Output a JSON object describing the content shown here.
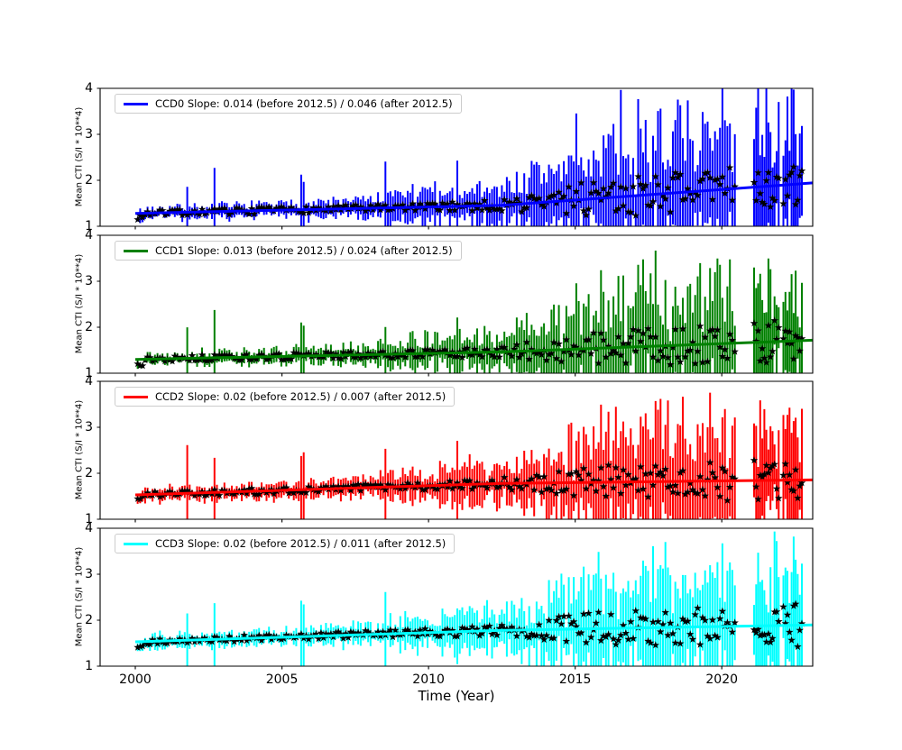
{
  "axes": {
    "xlabel": "Time (Year)",
    "ylabel": "Mean CTI (S/I * 10**4)",
    "x_tick_labels": [
      "2000",
      "2005",
      "2010",
      "2015",
      "2020"
    ],
    "x_tick_values": [
      2000,
      2005,
      2010,
      2015,
      2020
    ],
    "y_tick_labels": [
      "1",
      "2",
      "3",
      "4"
    ],
    "y_tick_values": [
      1,
      2,
      3,
      4
    ]
  },
  "chart_data": {
    "type": "errorbar",
    "title": "",
    "xlim": [
      1998.8,
      2023.1
    ],
    "ylim": [
      1,
      4
    ],
    "break_year": 2012.5,
    "marker": "star",
    "marker_color": "#000000",
    "grid": false,
    "legend_position": "upper left",
    "time_segments": [
      {
        "from": 2000.08,
        "to": 2020.45,
        "step": 0.0845
      },
      {
        "from": 2021.1,
        "to": 2021.95,
        "step": 0.07
      },
      {
        "from": 2022.1,
        "to": 2022.75,
        "step": 0.07
      }
    ],
    "spike_times": [
      2001.75,
      2002.7,
      2005.7,
      2008.55,
      2011.0,
      2012.9
    ],
    "panels": [
      {
        "name": "CCD0",
        "color": "#0000ff",
        "legend_label": "CCD0 Slope: 0.014 (before 2012.5) / 0.046 (after 2012.5)",
        "slope_before": 0.014,
        "slope_after": 0.046,
        "fit": {
          "x": [
            2000,
            2012.5,
            2023.1
          ],
          "y": [
            1.28,
            1.455,
            1.943
          ]
        },
        "error_envelope": [
          [
            2000,
            0.1
          ],
          [
            2005,
            0.12
          ],
          [
            2008,
            0.18
          ],
          [
            2009,
            0.28
          ],
          [
            2012.5,
            0.38
          ],
          [
            2014,
            0.62
          ],
          [
            2015.5,
            0.88
          ],
          [
            2016.5,
            1.05
          ],
          [
            2018,
            1.1
          ],
          [
            2020.5,
            1.05
          ],
          [
            2023,
            1.1
          ]
        ],
        "scatter_envelope": [
          [
            2000,
            0.05
          ],
          [
            2010,
            0.07
          ],
          [
            2012.5,
            0.1
          ],
          [
            2014,
            0.22
          ],
          [
            2016,
            0.34
          ],
          [
            2023,
            0.4
          ]
        ],
        "seed": 7
      },
      {
        "name": "CCD1",
        "color": "#008000",
        "legend_label": "CCD1 Slope: 0.013 (before 2012.5) / 0.024 (after 2012.5)",
        "slope_before": 0.013,
        "slope_after": 0.024,
        "fit": {
          "x": [
            2000,
            2012.5,
            2023.1
          ],
          "y": [
            1.3,
            1.463,
            1.717
          ]
        },
        "error_envelope": [
          [
            2000,
            0.1
          ],
          [
            2005,
            0.12
          ],
          [
            2008,
            0.16
          ],
          [
            2009,
            0.26
          ],
          [
            2012.5,
            0.36
          ],
          [
            2014,
            0.58
          ],
          [
            2015.5,
            0.82
          ],
          [
            2016.5,
            1.0
          ],
          [
            2018,
            1.05
          ],
          [
            2020.5,
            1.0
          ],
          [
            2023,
            1.05
          ]
        ],
        "scatter_envelope": [
          [
            2000,
            0.05
          ],
          [
            2010,
            0.07
          ],
          [
            2012.5,
            0.1
          ],
          [
            2014,
            0.2
          ],
          [
            2016,
            0.32
          ],
          [
            2023,
            0.38
          ]
        ],
        "seed": 13
      },
      {
        "name": "CCD2",
        "color": "#ff0000",
        "legend_label": "CCD2 Slope: 0.02 (before 2012.5) / 0.007 (after 2012.5)",
        "slope_before": 0.02,
        "slope_after": 0.007,
        "fit": {
          "x": [
            2000,
            2012.5,
            2023.1
          ],
          "y": [
            1.53,
            1.78,
            1.854
          ]
        },
        "error_envelope": [
          [
            2000,
            0.12
          ],
          [
            2005,
            0.13
          ],
          [
            2008,
            0.18
          ],
          [
            2009,
            0.28
          ],
          [
            2012.5,
            0.4
          ],
          [
            2014,
            0.6
          ],
          [
            2015.5,
            0.85
          ],
          [
            2016.5,
            1.0
          ],
          [
            2018,
            1.05
          ],
          [
            2020.5,
            1.0
          ],
          [
            2023,
            1.15
          ]
        ],
        "scatter_envelope": [
          [
            2000,
            0.05
          ],
          [
            2010,
            0.07
          ],
          [
            2012.5,
            0.1
          ],
          [
            2014,
            0.2
          ],
          [
            2016,
            0.3
          ],
          [
            2023,
            0.38
          ]
        ],
        "seed": 21
      },
      {
        "name": "CCD3",
        "color": "#00ffff",
        "legend_label": "CCD3 Slope: 0.02 (before 2012.5) / 0.011 (after 2012.5)",
        "slope_before": 0.02,
        "slope_after": 0.011,
        "fit": {
          "x": [
            2000,
            2012.5,
            2023.1
          ],
          "y": [
            1.53,
            1.78,
            1.897
          ]
        },
        "error_envelope": [
          [
            2000,
            0.12
          ],
          [
            2005,
            0.13
          ],
          [
            2008,
            0.18
          ],
          [
            2009,
            0.28
          ],
          [
            2012.5,
            0.4
          ],
          [
            2014,
            0.6
          ],
          [
            2015.5,
            0.85
          ],
          [
            2016.5,
            1.0
          ],
          [
            2018,
            1.05
          ],
          [
            2020.5,
            1.05
          ],
          [
            2023,
            1.2
          ]
        ],
        "scatter_envelope": [
          [
            2000,
            0.05
          ],
          [
            2010,
            0.07
          ],
          [
            2012.5,
            0.1
          ],
          [
            2014,
            0.2
          ],
          [
            2016,
            0.3
          ],
          [
            2023,
            0.38
          ]
        ],
        "seed": 29
      }
    ]
  }
}
